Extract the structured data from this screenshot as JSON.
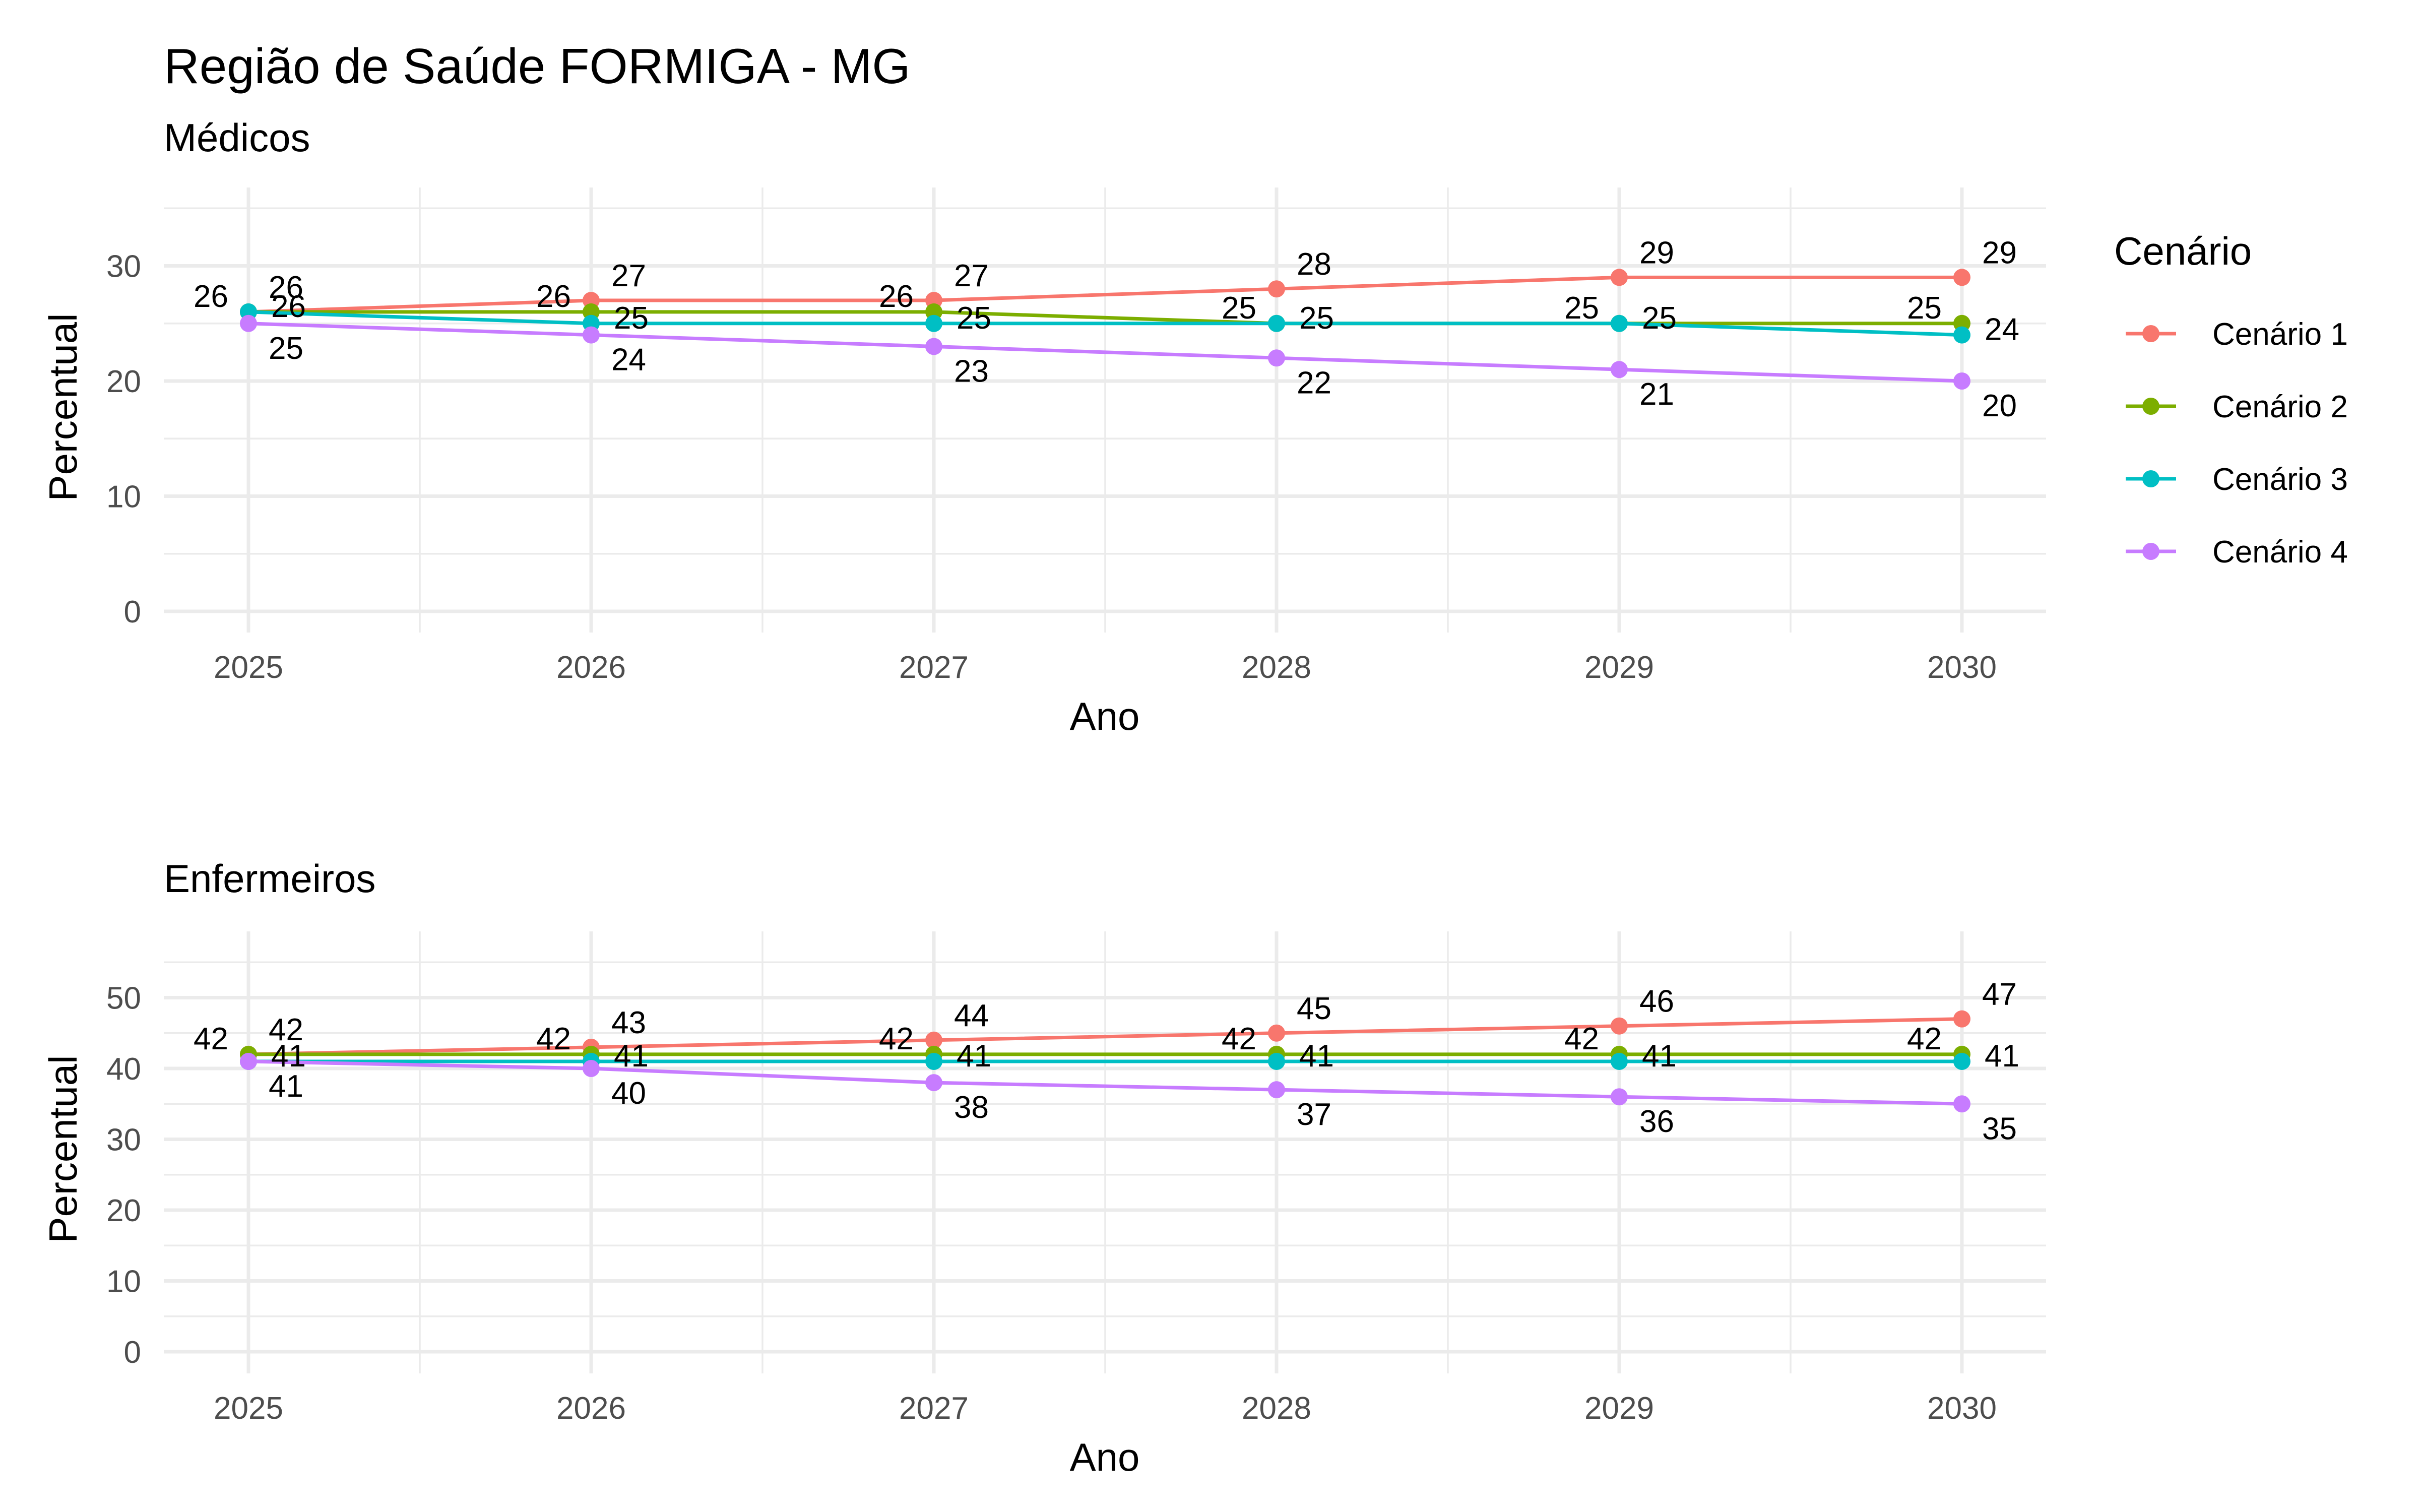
{
  "title": "Região de Saúde FORMIGA - MG",
  "legend": {
    "title": "Cenário",
    "entries": [
      "Cenário 1",
      "Cenário 2",
      "Cenário 3",
      "Cenário 4"
    ]
  },
  "colors": {
    "Cenário 1": "#F8766D",
    "Cenário 2": "#7CAE00",
    "Cenário 3": "#00BFC4",
    "Cenário 4": "#C77CFF"
  },
  "chart_data": [
    {
      "type": "line",
      "subtitle": "Médicos",
      "xlabel": "Ano",
      "ylabel": "Percentual",
      "x": [
        2025,
        2026,
        2027,
        2028,
        2029,
        2030
      ],
      "yticks": [
        0,
        10,
        20,
        30
      ],
      "ylim": [
        0,
        30
      ],
      "grid": true,
      "series": [
        {
          "name": "Cenário 1",
          "values": [
            26,
            27,
            27,
            28,
            29,
            29
          ]
        },
        {
          "name": "Cenário 2",
          "values": [
            26,
            26,
            26,
            25,
            25,
            25
          ]
        },
        {
          "name": "Cenário 3",
          "values": [
            26,
            25,
            25,
            25,
            25,
            24
          ]
        },
        {
          "name": "Cenário 4",
          "values": [
            25,
            24,
            23,
            22,
            21,
            20
          ]
        }
      ]
    },
    {
      "type": "line",
      "subtitle": "Enfermeiros",
      "xlabel": "Ano",
      "ylabel": "Percentual",
      "x": [
        2025,
        2026,
        2027,
        2028,
        2029,
        2030
      ],
      "yticks": [
        0,
        10,
        20,
        30,
        40,
        50
      ],
      "ylim": [
        0,
        50
      ],
      "grid": true,
      "series": [
        {
          "name": "Cenário 1",
          "values": [
            42,
            43,
            44,
            45,
            46,
            47
          ]
        },
        {
          "name": "Cenário 2",
          "values": [
            42,
            42,
            42,
            42,
            42,
            42
          ]
        },
        {
          "name": "Cenário 3",
          "values": [
            41,
            41,
            41,
            41,
            41,
            41
          ]
        },
        {
          "name": "Cenário 4",
          "values": [
            41,
            40,
            38,
            37,
            36,
            35
          ]
        }
      ]
    }
  ]
}
